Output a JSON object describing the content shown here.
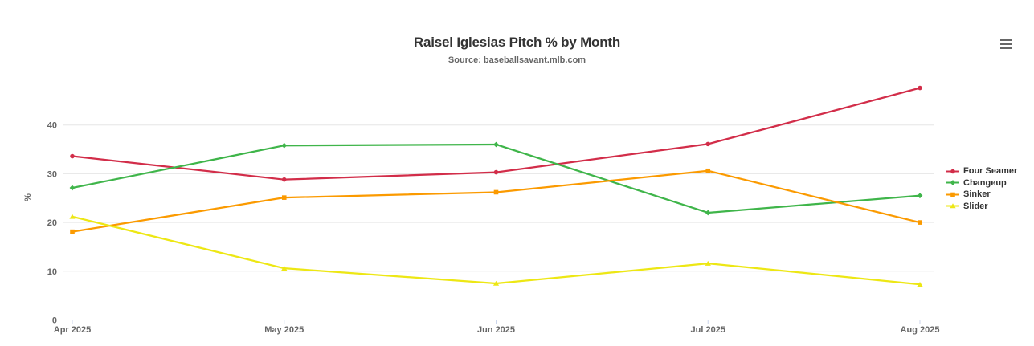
{
  "menu": {
    "icon": "hamburger-menu-icon"
  },
  "chart_data": {
    "type": "line",
    "title": "Raisel Iglesias Pitch % by Month",
    "subtitle": "Source: baseballsavant.mlb.com",
    "categories": [
      "Apr 2025",
      "May 2025",
      "Jun 2025",
      "Jul 2025",
      "Aug 2025"
    ],
    "series": [
      {
        "name": "Four Seamer",
        "color": "#D22D49",
        "marker": "circle",
        "values": [
          33.6,
          28.8,
          30.3,
          36.1,
          47.6
        ]
      },
      {
        "name": "Changeup",
        "color": "#3FB54A",
        "marker": "diamond",
        "values": [
          27.1,
          35.8,
          36.0,
          22.0,
          25.5
        ]
      },
      {
        "name": "Sinker",
        "color": "#FB9A00",
        "marker": "square",
        "values": [
          18.1,
          25.1,
          26.2,
          30.6,
          20.0
        ]
      },
      {
        "name": "Slider",
        "color": "#EDE714",
        "marker": "triangle",
        "values": [
          21.2,
          10.6,
          7.5,
          11.6,
          7.3
        ]
      }
    ],
    "xlabel": "",
    "ylabel": "%",
    "ylim": [
      0,
      49
    ],
    "yticks": [
      0,
      10,
      20,
      30,
      40
    ],
    "grid": true,
    "legend_position": "right",
    "style": {
      "grid_color": "#e6e6e6",
      "axis_line_color": "#ccd6eb",
      "tick_label_color": "#666666",
      "title_color": "#333333",
      "subtitle_color": "#666666",
      "legend_text_color": "#333333",
      "background": "#ffffff"
    }
  }
}
